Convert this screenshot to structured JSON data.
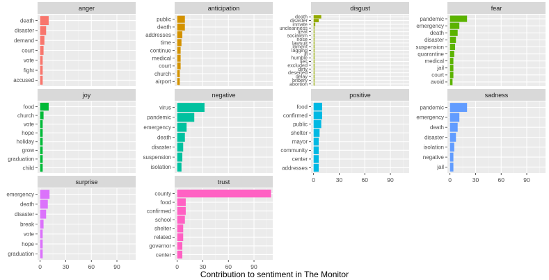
{
  "chart_data": {
    "type": "bar",
    "orientation": "horizontal",
    "layout": "facet-grid",
    "xlabel": "Contribution to sentiment in The Monitor",
    "ylabel": "",
    "xlim": [
      -3,
      112
    ],
    "xticks": [
      0,
      30,
      60,
      90
    ],
    "grid": true,
    "legend": "none",
    "panels": [
      {
        "title": "anger",
        "color": "#F8766D",
        "categories": [
          "death",
          "disaster",
          "demand",
          "court",
          "vote",
          "fight",
          "accused"
        ],
        "values": [
          10,
          7,
          5,
          4,
          3,
          3,
          3
        ]
      },
      {
        "title": "anticipation",
        "color": "#D39200",
        "categories": [
          "public",
          "death",
          "addresses",
          "time",
          "continue",
          "medical",
          "court",
          "church",
          "airport"
        ],
        "values": [
          9,
          9,
          6,
          5,
          4,
          4,
          4,
          3,
          3
        ]
      },
      {
        "title": "disgust",
        "color": "#93AA00",
        "categories": [
          "death",
          "disaster",
          "inmate",
          "uncleanness",
          "treat",
          "socialism",
          "nose",
          "lawsuit",
          "lament",
          "lagging",
          "ill",
          "humble",
          "lies",
          "excluded",
          "dirty",
          "deserted",
          "delay",
          "bribery",
          "abortion"
        ],
        "values": [
          9,
          6,
          2,
          1,
          1,
          1,
          1,
          1,
          1,
          1,
          1,
          1,
          1,
          1,
          1,
          1,
          1,
          1,
          1
        ]
      },
      {
        "title": "fear",
        "color": "#5BB300",
        "categories": [
          "pandemic",
          "emergency",
          "death",
          "disaster",
          "suspension",
          "quarantine",
          "medical",
          "jail",
          "court",
          "avoid"
        ],
        "values": [
          20,
          11,
          9,
          7,
          6,
          5,
          4,
          4,
          4,
          3
        ]
      },
      {
        "title": "joy",
        "color": "#00BA38",
        "categories": [
          "food",
          "church",
          "vote",
          "hope",
          "holiday",
          "grow",
          "graduation",
          "child"
        ],
        "values": [
          10,
          4,
          3,
          3,
          3,
          3,
          3,
          3
        ]
      },
      {
        "title": "negative",
        "color": "#00C19F",
        "categories": [
          "virus",
          "pandemic",
          "emergency",
          "death",
          "disaster",
          "suspension",
          "isolation"
        ],
        "values": [
          32,
          20,
          11,
          9,
          7,
          6,
          5
        ]
      },
      {
        "title": "positive",
        "color": "#00B9E3",
        "categories": [
          "food",
          "confirmed",
          "public",
          "shelter",
          "mayor",
          "community",
          "center",
          "addresses"
        ],
        "values": [
          10,
          10,
          9,
          7,
          6,
          6,
          6,
          6
        ]
      },
      {
        "title": "sadness",
        "color": "#619CFF",
        "categories": [
          "pandemic",
          "emergency",
          "death",
          "disaster",
          "isolation",
          "negative",
          "jail"
        ],
        "values": [
          20,
          11,
          9,
          7,
          5,
          4,
          4
        ]
      },
      {
        "title": "surprise",
        "color": "#DB72FB",
        "categories": [
          "emergency",
          "death",
          "disaster",
          "break",
          "vote",
          "hope",
          "graduation"
        ],
        "values": [
          11,
          9,
          7,
          4,
          3,
          3,
          3
        ]
      },
      {
        "title": "trust",
        "color": "#FF61C3",
        "categories": [
          "county",
          "food",
          "confirmed",
          "school",
          "shelter",
          "related",
          "governor",
          "center"
        ],
        "values": [
          110,
          10,
          10,
          9,
          7,
          7,
          6,
          6
        ]
      }
    ]
  }
}
